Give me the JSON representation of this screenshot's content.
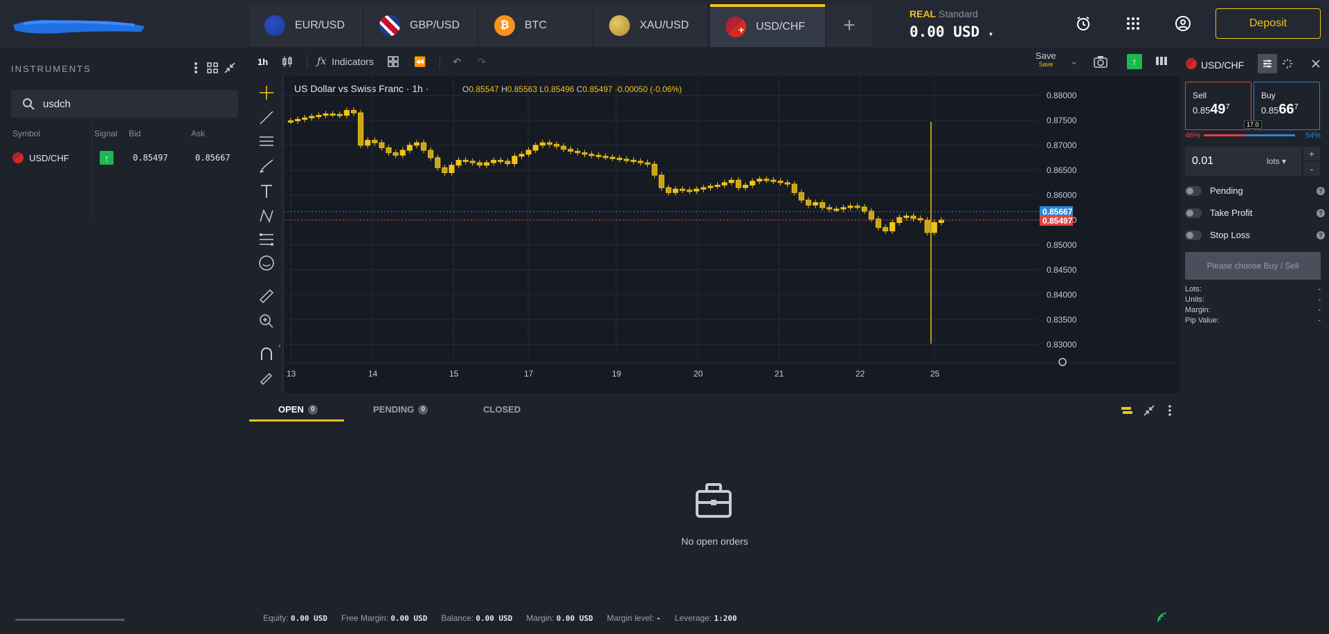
{
  "tabs": [
    {
      "label": "EUR/USD",
      "icon": "eu-us-flag-icon"
    },
    {
      "label": "GBP/USD",
      "icon": "uk-us-flag-icon"
    },
    {
      "label": "BTC",
      "icon": "bitcoin-icon"
    },
    {
      "label": "XAU/USD",
      "icon": "gold-us-flag-icon"
    },
    {
      "label": "USD/CHF",
      "icon": "us-swiss-flag-icon",
      "active": true
    }
  ],
  "account": {
    "type": "REAL",
    "plan": "Standard",
    "balance": "0.00 USD"
  },
  "header": {
    "deposit_label": "Deposit"
  },
  "instruments": {
    "title": "INSTRUMENTS",
    "search_value": "usdch",
    "columns": [
      "Symbol",
      "Signal",
      "Bid",
      "Ask"
    ],
    "rows": [
      {
        "symbol": "USD/CHF",
        "signal": "↑",
        "bid": "0.85497",
        "ask": "0.85667"
      }
    ]
  },
  "toolbar": {
    "timeframe": "1h",
    "indicators_label": "Indicators",
    "save_label": "Save",
    "save_sub": "Save"
  },
  "chart": {
    "title": "US Dollar vs Swiss Franc · 1h ·",
    "ohlc": {
      "o": "0.85547",
      "h": "0.85563",
      "l": "0.85496",
      "c": "0.85497",
      "chg": "-0.00050 (-0.06%)"
    },
    "ask_tag": "0.85667",
    "bid_tag": "0.85497"
  },
  "chart_data": {
    "type": "candlestick",
    "yticks": [
      "0.88000",
      "0.87500",
      "0.87000",
      "0.86500",
      "0.86000",
      "0.85500",
      "0.85000",
      "0.84500",
      "0.84000",
      "0.83500",
      "0.83000"
    ],
    "xticks": [
      "13",
      "14",
      "15",
      "17",
      "19",
      "20",
      "21",
      "22",
      "25"
    ],
    "ylim": [
      0.8286,
      0.8822
    ],
    "close_series": [
      0.8749,
      0.8752,
      0.8755,
      0.8758,
      0.876,
      0.8763,
      0.8762,
      0.876,
      0.877,
      0.8765,
      0.87,
      0.871,
      0.8705,
      0.8695,
      0.8685,
      0.868,
      0.869,
      0.87,
      0.8705,
      0.869,
      0.8675,
      0.8655,
      0.8645,
      0.866,
      0.867,
      0.8668,
      0.8665,
      0.866,
      0.8665,
      0.867,
      0.8668,
      0.8663,
      0.8678,
      0.8682,
      0.869,
      0.87,
      0.8705,
      0.8702,
      0.8698,
      0.8692,
      0.8688,
      0.8685,
      0.8682,
      0.868,
      0.8678,
      0.8676,
      0.8674,
      0.8672,
      0.867,
      0.8668,
      0.8665,
      0.8662,
      0.864,
      0.8615,
      0.8605,
      0.8612,
      0.861,
      0.8608,
      0.8612,
      0.8615,
      0.8618,
      0.862,
      0.8625,
      0.863,
      0.8615,
      0.862,
      0.8628,
      0.8632,
      0.863,
      0.8628,
      0.8625,
      0.8622,
      0.8605,
      0.859,
      0.858,
      0.8585,
      0.8575,
      0.8572,
      0.8572,
      0.8575,
      0.8578,
      0.8576,
      0.8568,
      0.8552,
      0.8535,
      0.8528,
      0.8545,
      0.8555,
      0.8558,
      0.8553,
      0.855,
      0.8525,
      0.8545,
      0.855
    ]
  },
  "orders": {
    "tabs": [
      {
        "label": "OPEN",
        "count": "0"
      },
      {
        "label": "PENDING",
        "count": "0"
      },
      {
        "label": "CLOSED"
      }
    ],
    "empty_text": "No open orders"
  },
  "footer": {
    "equity_label": "Equity:",
    "equity": "0.00 USD",
    "free_margin_label": "Free Margin:",
    "free_margin": "0.00 USD",
    "balance_label": "Balance:",
    "balance": "0.00 USD",
    "margin_label": "Margin:",
    "margin": "0.00 USD",
    "margin_level_label": "Margin level:",
    "margin_level": "-",
    "leverage_label": "Leverage:",
    "leverage": "1:200"
  },
  "trade": {
    "symbol": "USD/CHF",
    "sell_label": "Sell",
    "sell_small": "0.85",
    "sell_big": "49",
    "sell_sup": "7",
    "buy_label": "Buy",
    "buy_small": "0.85",
    "buy_big": "66",
    "buy_sup": "7",
    "spread": "17.0",
    "sell_pct": "46%",
    "buy_pct": "54%",
    "sell_fraction": 0.46,
    "lots_value": "0.01",
    "lots_unit": "lots",
    "options": [
      "Pending",
      "Take Profit",
      "Stop Loss"
    ],
    "choose_label": "Please choose Buy / Sell",
    "stats": [
      {
        "k": "Lots:",
        "v": "-"
      },
      {
        "k": "Units:",
        "v": "-"
      },
      {
        "k": "Margin:",
        "v": "-"
      },
      {
        "k": "Pip Value:",
        "v": "-"
      }
    ]
  }
}
